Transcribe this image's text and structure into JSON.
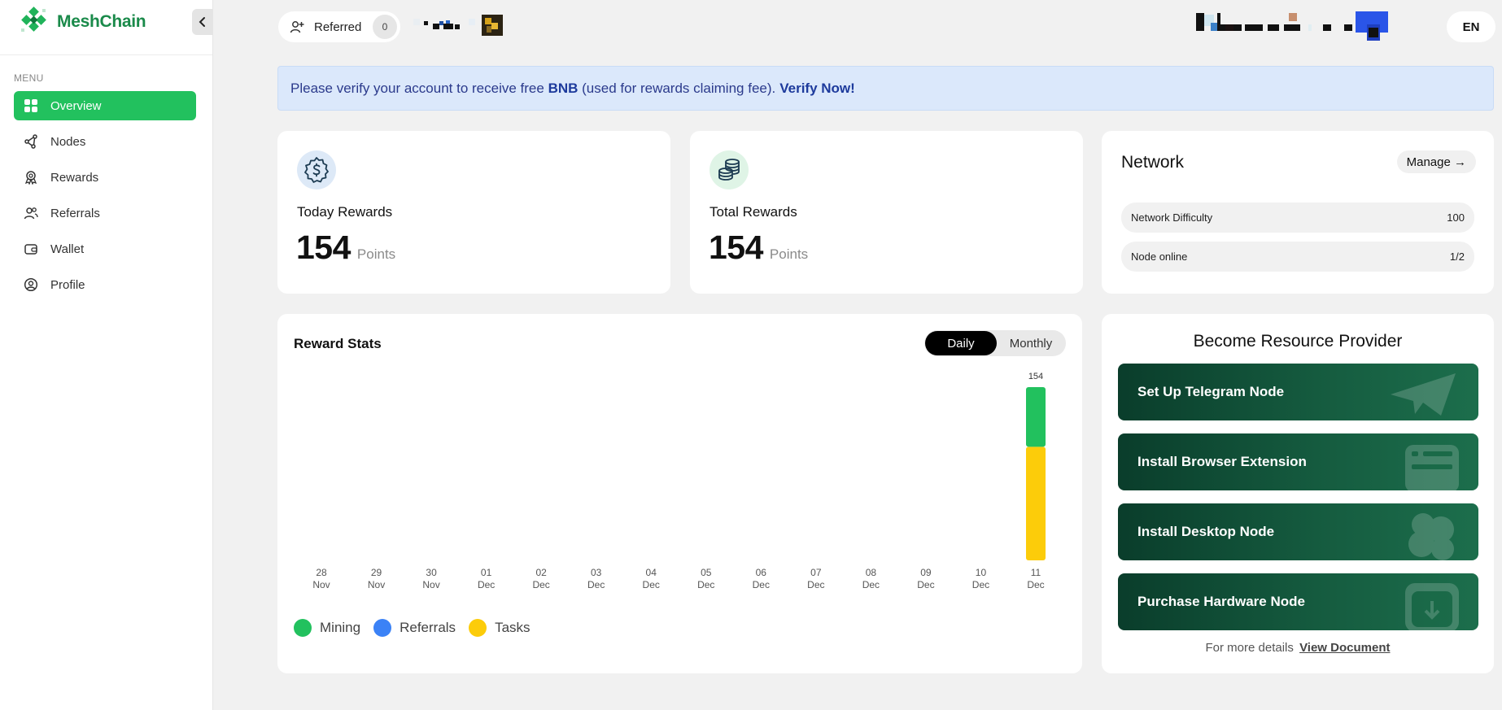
{
  "brand": {
    "name": "MeshChain",
    "color": "#1a8a4a"
  },
  "sidebar": {
    "menu_label": "MENU",
    "items": [
      {
        "label": "Overview",
        "icon": "grid-icon",
        "active": true
      },
      {
        "label": "Nodes",
        "icon": "nodes-icon"
      },
      {
        "label": "Rewards",
        "icon": "rewards-icon"
      },
      {
        "label": "Referrals",
        "icon": "users-icon"
      },
      {
        "label": "Wallet",
        "icon": "wallet-icon"
      },
      {
        "label": "Profile",
        "icon": "profile-icon"
      }
    ]
  },
  "topbar": {
    "referred_label": "Referred",
    "referred_count": "0",
    "language": "EN"
  },
  "banner": {
    "text_before": "Please verify your account to receive free",
    "token": "BNB",
    "text_after": "(used for rewards claiming fee).",
    "link": "Verify Now!"
  },
  "today_rewards": {
    "label": "Today Rewards",
    "value": "154",
    "unit": "Points"
  },
  "total_rewards": {
    "label": "Total Rewards",
    "value": "154",
    "unit": "Points"
  },
  "network": {
    "title": "Network",
    "manage_label": "Manage →",
    "rows": [
      {
        "label": "Network Difficulty",
        "value": "100"
      },
      {
        "label": "Node online",
        "value": "1/2"
      }
    ]
  },
  "reward_stats": {
    "title": "Reward Stats",
    "toggle": {
      "daily": "Daily",
      "monthly": "Monthly",
      "selected": "Daily"
    }
  },
  "chart_data": {
    "type": "bar",
    "stacked": true,
    "title": "Reward Stats",
    "categories": [
      "28 Nov",
      "29 Nov",
      "30 Nov",
      "01 Dec",
      "02 Dec",
      "03 Dec",
      "04 Dec",
      "05 Dec",
      "06 Dec",
      "07 Dec",
      "08 Dec",
      "09 Dec",
      "10 Dec",
      "11 Dec"
    ],
    "tick_days": [
      "28",
      "29",
      "30",
      "01",
      "02",
      "03",
      "04",
      "05",
      "06",
      "07",
      "08",
      "09",
      "10",
      "11"
    ],
    "tick_months": [
      "Nov",
      "Nov",
      "Nov",
      "Dec",
      "Dec",
      "Dec",
      "Dec",
      "Dec",
      "Dec",
      "Dec",
      "Dec",
      "Dec",
      "Dec",
      "Dec"
    ],
    "series": [
      {
        "name": "Mining",
        "color": "#22c15e",
        "values": [
          0,
          0,
          0,
          0,
          0,
          0,
          0,
          0,
          0,
          0,
          0,
          0,
          0,
          54
        ]
      },
      {
        "name": "Referrals",
        "color": "#3b82f6",
        "values": [
          0,
          0,
          0,
          0,
          0,
          0,
          0,
          0,
          0,
          0,
          0,
          0,
          0,
          0
        ]
      },
      {
        "name": "Tasks",
        "color": "#fccc0a",
        "values": [
          0,
          0,
          0,
          0,
          0,
          0,
          0,
          0,
          0,
          0,
          0,
          0,
          0,
          100
        ]
      }
    ],
    "totals_labels": [
      "",
      "",
      "",
      "",
      "",
      "",
      "",
      "",
      "",
      "",
      "",
      "",
      "",
      "154"
    ],
    "ylim": [
      0,
      154
    ],
    "legend": "bottom-left",
    "grid": false
  },
  "resource_provider": {
    "title": "Become Resource Provider",
    "buttons": [
      {
        "label": "Set Up Telegram Node",
        "icon": "telegram-icon"
      },
      {
        "label": "Install Browser Extension",
        "icon": "browser-icon"
      },
      {
        "label": "Install Desktop Node",
        "icon": "desktop-icon"
      },
      {
        "label": "Purchase Hardware Node",
        "icon": "hardware-icon"
      }
    ],
    "footer_text": "For more details",
    "footer_link": "View Document"
  }
}
